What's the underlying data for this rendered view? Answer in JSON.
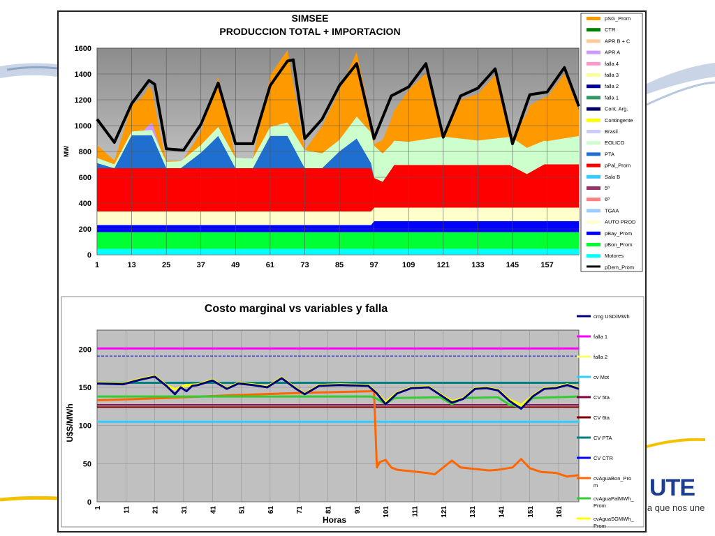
{
  "logo": {
    "text": "UTE",
    "tagline": "la que nos une"
  },
  "chart_data": [
    {
      "type": "area",
      "title": "SIMSEE",
      "subtitle": "PRODUCCION TOTAL + IMPORTACION",
      "xlabel": "",
      "ylabel": "MW",
      "ylim": [
        0,
        1600
      ],
      "yticks": [
        0,
        200,
        400,
        600,
        800,
        1000,
        1200,
        1400,
        1600
      ],
      "xlim": [
        1,
        168
      ],
      "xticks": [
        1,
        13,
        25,
        37,
        49,
        61,
        73,
        85,
        97,
        109,
        121,
        133,
        145,
        157
      ],
      "grid": true,
      "legend_position": "right",
      "legend": [
        {
          "name": "pSG_Prom",
          "color": "#ff9900"
        },
        {
          "name": "CTR",
          "color": "#008000"
        },
        {
          "name": "APR B + C",
          "color": "#ffcc99"
        },
        {
          "name": "APR A",
          "color": "#cc99ff"
        },
        {
          "name": "falla 4",
          "color": "#ff99cc"
        },
        {
          "name": "falla 3",
          "color": "#ffff99"
        },
        {
          "name": "falla 2",
          "color": "#000099"
        },
        {
          "name": "falla 1",
          "color": "#339966"
        },
        {
          "name": "Cont. Arg.",
          "color": "#000066"
        },
        {
          "name": "Contingente",
          "color": "#ffff00"
        },
        {
          "name": "Brasil",
          "color": "#ccccff"
        },
        {
          "name": "EOLICO",
          "color": "#ccffcc"
        },
        {
          "name": "PTA",
          "color": "#1f6fd1"
        },
        {
          "name": "pPal_Prom",
          "color": "#ff0000"
        },
        {
          "name": "Sala B",
          "color": "#33ccff"
        },
        {
          "name": "5ª",
          "color": "#993366"
        },
        {
          "name": "6ª",
          "color": "#ff8080"
        },
        {
          "name": "TGAA",
          "color": "#99ccff"
        },
        {
          "name": "AUTO PROD",
          "color": "#ffffcc"
        },
        {
          "name": "pBay_Prom",
          "color": "#0000ff"
        },
        {
          "name": "pBon_Prom",
          "color": "#00ff33"
        },
        {
          "name": "Motores",
          "color": "#00ffff"
        },
        {
          "name": "pDem_Prom",
          "color": "#000000"
        }
      ],
      "stack_series": [
        {
          "name": "Motores",
          "color": "#00ffff",
          "x": [
            1,
            168
          ],
          "values": [
            45,
            45
          ]
        },
        {
          "name": "pBon_Prom",
          "color": "#00ff33",
          "x": [
            1,
            168
          ],
          "values": [
            130,
            130
          ]
        },
        {
          "name": "pBay_Prom",
          "color": "#0000ff",
          "x": [
            1,
            96,
            97,
            168
          ],
          "values": [
            55,
            55,
            85,
            85
          ]
        },
        {
          "name": "AUTO PROD",
          "color": "#ffffcc",
          "x": [
            1,
            96,
            97,
            168
          ],
          "values": [
            105,
            105,
            105,
            105
          ]
        },
        {
          "name": "pPal_Prom",
          "color": "#ff0000",
          "x": [
            1,
            96,
            97,
            100,
            104,
            110,
            144,
            150,
            156,
            168
          ],
          "values": [
            335,
            335,
            230,
            200,
            330,
            330,
            330,
            260,
            335,
            335
          ]
        },
        {
          "name": "PTA",
          "color": "#1f6fd1",
          "x": [
            1,
            7,
            13,
            20,
            25,
            30,
            37,
            43,
            49,
            55,
            61,
            67,
            73,
            79,
            85,
            91,
            97,
            168
          ],
          "values": [
            40,
            0,
            255,
            255,
            0,
            0,
            120,
            250,
            0,
            0,
            250,
            250,
            0,
            0,
            130,
            230,
            0,
            0
          ]
        },
        {
          "name": "EOLICO",
          "color": "#ccffcc",
          "x": [
            1,
            7,
            13,
            25,
            37,
            49,
            61,
            73,
            85,
            97,
            103,
            109,
            121,
            133,
            145,
            157,
            168
          ],
          "values": [
            40,
            30,
            30,
            50,
            60,
            80,
            70,
            140,
            90,
            250,
            190,
            180,
            220,
            190,
            220,
            180,
            220
          ]
        },
        {
          "name": "APR A",
          "color": "#cc99ff",
          "x": [
            1,
            17,
            20,
            23,
            168
          ],
          "values": [
            0,
            0,
            60,
            0,
            0
          ]
        },
        {
          "name": "pSG_Prom",
          "color": "#ff9900",
          "x": [
            1,
            7,
            13,
            19,
            25,
            31,
            37,
            43,
            49,
            55,
            61,
            67,
            73,
            79,
            85,
            91,
            97,
            103,
            109,
            115,
            121,
            127,
            133,
            139,
            145,
            151,
            157,
            163,
            168
          ],
          "values": [
            100,
            30,
            200,
            300,
            10,
            0,
            100,
            380,
            0,
            0,
            400,
            560,
            0,
            210,
            380,
            500,
            10,
            200,
            400,
            510,
            0,
            300,
            360,
            490,
            0,
            320,
            340,
            500,
            200
          ]
        }
      ],
      "demand": {
        "name": "pDem_Prom",
        "x": [
          1,
          7,
          13,
          19,
          21,
          25,
          31,
          37,
          43,
          49,
          55,
          61,
          67,
          69,
          73,
          79,
          85,
          91,
          97,
          103,
          109,
          115,
          121,
          127,
          133,
          139,
          145,
          151,
          157,
          163,
          168
        ],
        "values": [
          1050,
          870,
          1170,
          1350,
          1320,
          820,
          810,
          1010,
          1330,
          860,
          860,
          1310,
          1500,
          1510,
          900,
          1050,
          1310,
          1480,
          900,
          1230,
          1300,
          1480,
          910,
          1230,
          1290,
          1440,
          860,
          1240,
          1260,
          1450,
          1150
        ]
      }
    },
    {
      "type": "line",
      "title": "Costo marginal  vs variables y falla",
      "xlabel": "Horas",
      "ylabel": "U$S/MWh",
      "ylim": [
        0,
        225
      ],
      "yticks": [
        0,
        50,
        100,
        150,
        200
      ],
      "xlim": [
        1,
        168
      ],
      "xticks": [
        1,
        11,
        21,
        31,
        41,
        51,
        61,
        71,
        81,
        91,
        101,
        111,
        121,
        131,
        141,
        151,
        161
      ],
      "grid": true,
      "legend_position": "right",
      "series": [
        {
          "name": "cmg USD/MWh",
          "color": "#000080",
          "width": 3,
          "x": [
            1,
            10,
            16,
            21,
            25,
            28,
            30,
            32,
            34,
            36,
            41,
            46,
            50,
            55,
            60,
            65,
            70,
            73,
            78,
            85,
            95,
            98,
            101,
            105,
            110,
            116,
            120,
            124,
            128,
            132,
            136,
            140,
            144,
            148,
            152,
            156,
            160,
            164,
            168
          ],
          "values": [
            155,
            154,
            160,
            164,
            152,
            141,
            150,
            145,
            152,
            153,
            159,
            148,
            155,
            153,
            150,
            162,
            148,
            141,
            152,
            153,
            152,
            142,
            128,
            142,
            149,
            150,
            140,
            130,
            135,
            148,
            149,
            146,
            132,
            122,
            138,
            148,
            149,
            153,
            148
          ]
        },
        {
          "name": "falla 1",
          "color": "#ff00ff",
          "width": 3,
          "x": [
            1,
            168
          ],
          "values": [
            201,
            201
          ]
        },
        {
          "name": "falla 2",
          "color": "#ffff66",
          "width": 3,
          "x": [
            1,
            10,
            16,
            21,
            25,
            28,
            32,
            36,
            41,
            46,
            50,
            55,
            60,
            65,
            70,
            73,
            78,
            85,
            95,
            98,
            101,
            105,
            110,
            116,
            120,
            124,
            128,
            132,
            136,
            140,
            144,
            148,
            152,
            156,
            160,
            164,
            168
          ],
          "values": [
            155,
            154,
            160,
            164,
            152,
            147,
            152,
            153,
            159,
            148,
            155,
            153,
            150,
            162,
            148,
            141,
            152,
            153,
            152,
            142,
            130,
            142,
            149,
            150,
            140,
            131,
            135,
            148,
            149,
            146,
            133,
            126,
            138,
            148,
            149,
            153,
            148
          ]
        },
        {
          "name": "cv Mot",
          "color": "#33ccff",
          "width": 3,
          "x": [
            1,
            168
          ],
          "values": [
            105,
            105
          ]
        },
        {
          "name": "CV 5ta",
          "color": "#800040",
          "width": 2,
          "x": [
            1,
            168
          ],
          "values": [
            127,
            127
          ]
        },
        {
          "name": "CV 6ta",
          "color": "#800000",
          "width": 2,
          "x": [
            1,
            168
          ],
          "values": [
            124,
            124
          ]
        },
        {
          "name": "CV PTA",
          "color": "#008080",
          "width": 3,
          "x": [
            1,
            168
          ],
          "values": [
            156,
            156
          ]
        },
        {
          "name": "CV CTR",
          "color": "#0000ff",
          "width": 1,
          "x": [
            1,
            168
          ],
          "values": [
            191,
            191
          ]
        },
        {
          "name": "cvAguaBon_Prom",
          "color": "#ff6600",
          "width": 3,
          "x": [
            1,
            25,
            50,
            75,
            97,
            98,
            99,
            101,
            103,
            105,
            110,
            115,
            118,
            121,
            124,
            127,
            132,
            137,
            140,
            145,
            148,
            151,
            155,
            160,
            164,
            168
          ],
          "values": [
            133,
            136,
            140,
            143,
            145,
            45,
            52,
            55,
            45,
            42,
            40,
            38,
            36,
            45,
            54,
            45,
            43,
            41,
            42,
            45,
            56,
            44,
            39,
            38,
            33,
            35
          ]
        },
        {
          "name": "cvAguaPalMWh_Prom",
          "color": "#33cc33",
          "width": 3,
          "x": [
            1,
            96,
            98,
            101,
            104,
            120,
            124,
            128,
            140,
            144,
            148,
            152,
            168
          ],
          "values": [
            138,
            138,
            135,
            128,
            136,
            137,
            128,
            136,
            137,
            127,
            124,
            136,
            138
          ]
        },
        {
          "name": "cvAguaSGMWh_Prom",
          "color": "#ffff00",
          "width": 3,
          "x": [
            1,
            10,
            16,
            21,
            25,
            28,
            32,
            36,
            41,
            46,
            50,
            55,
            60,
            65,
            70,
            73,
            78,
            85,
            95,
            98,
            101,
            105,
            110,
            116,
            120,
            124,
            128,
            132,
            136,
            140,
            144,
            148,
            152,
            156,
            160,
            164,
            168
          ],
          "values": [
            156,
            155,
            161,
            165,
            153,
            148,
            153,
            154,
            160,
            149,
            156,
            154,
            151,
            163,
            149,
            142,
            153,
            154,
            153,
            143,
            131,
            143,
            150,
            151,
            141,
            132,
            136,
            149,
            150,
            147,
            134,
            127,
            139,
            149,
            150,
            154,
            149
          ]
        }
      ],
      "legend": [
        {
          "name": "cmg USD/MWh",
          "color": "#000080"
        },
        {
          "name": "falla 1",
          "color": "#ff00ff"
        },
        {
          "name": "falla 2",
          "color": "#ffff66"
        },
        {
          "name": "cv Mot",
          "color": "#33ccff"
        },
        {
          "name": "CV 5ta",
          "color": "#800040"
        },
        {
          "name": "CV 6ta",
          "color": "#800000"
        },
        {
          "name": "CV PTA",
          "color": "#008080"
        },
        {
          "name": "CV CTR",
          "color": "#0000ff"
        },
        {
          "name": "cvAguaBon_Pro\nm",
          "color": "#ff6600"
        },
        {
          "name": "cvAguaPalMWh_\nProm",
          "color": "#33cc33"
        },
        {
          "name": "cvAguaSGMWh_\nProm",
          "color": "#ffff00"
        }
      ]
    }
  ]
}
